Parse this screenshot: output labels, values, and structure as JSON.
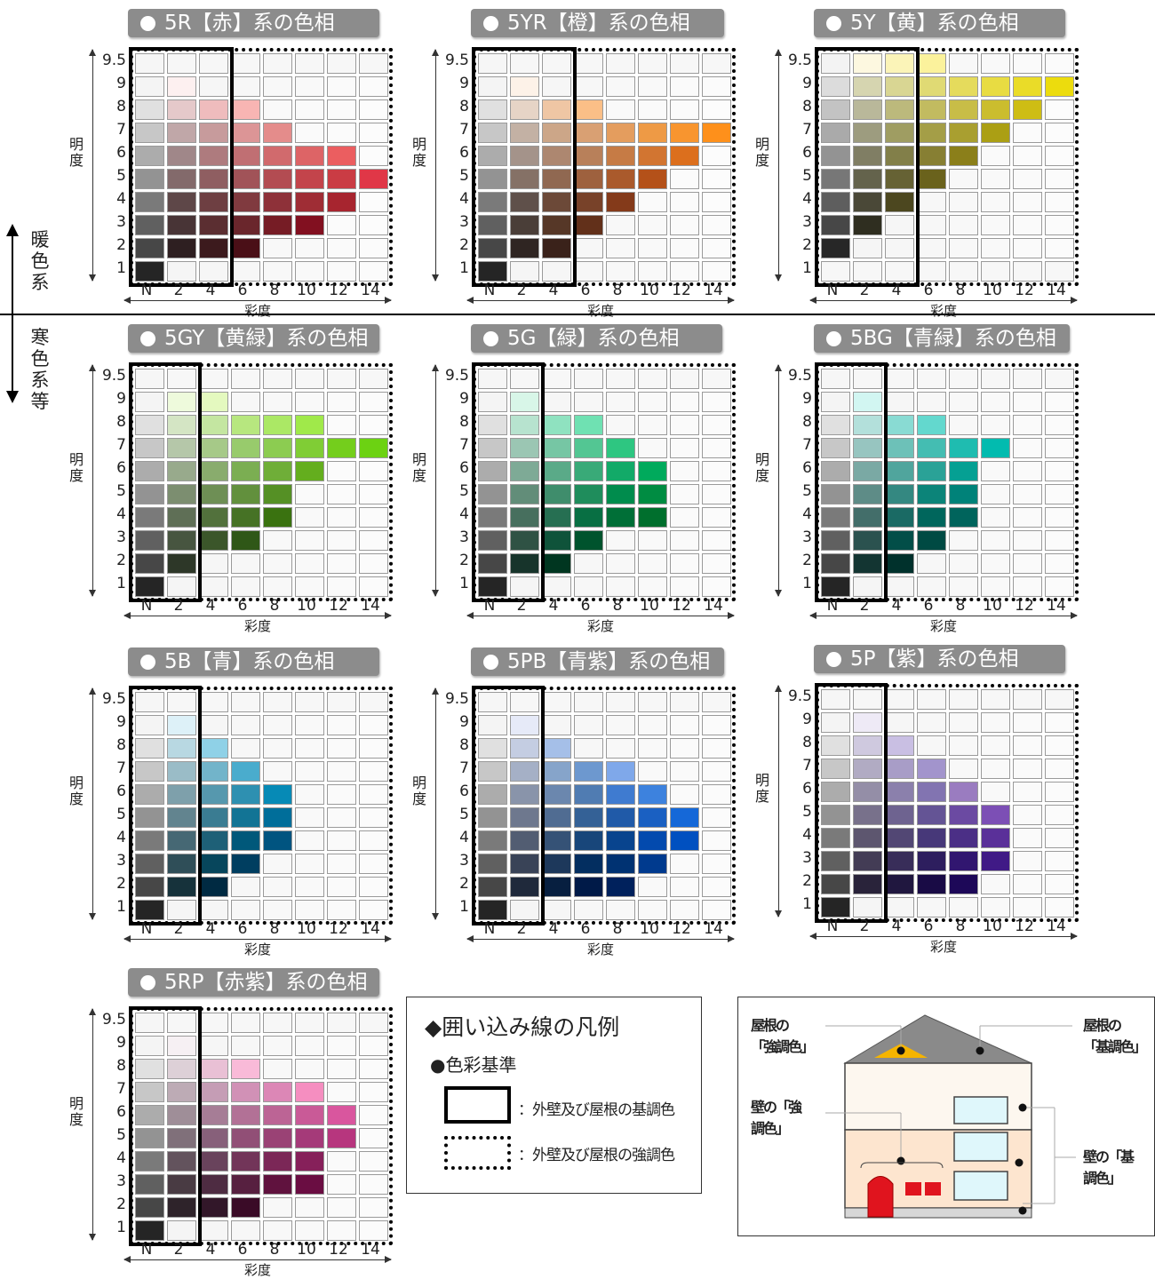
{
  "charts": [
    {
      "title": "5R【赤】系の色相",
      "cell_colors": {
        "2": [
          "#f4f4f4",
          "#fdf0f0",
          "#f6f6f6",
          "#f7f7f7",
          "#f8f8f8",
          "#f9f9f9",
          "#fafafa",
          "#fbfbfb"
        ],
        "3": [
          "#e0e0e0",
          "#e5c9ca",
          "#efbcbd",
          "#f8b5b3",
          "#f9f9f9",
          "#fafafa",
          "#fbfbfb",
          "#fcfcfc"
        ],
        "4": [
          "#c7c7c7",
          "#c0a7a8",
          "#c79b9c",
          "#dc9596",
          "#e48c8b",
          "#fafafa",
          "#fbfbfb",
          "#fcfcfc"
        ],
        "5": [
          "#acacac",
          "#a08789",
          "#ae7b7e",
          "#c06f73",
          "#d16a6d",
          "#dd6466",
          "#eb5e60",
          "#fcfcfc"
        ],
        "6": [
          "#939393",
          "#836a6b",
          "#8f5e61",
          "#a15358",
          "#b34c52",
          "#c3444b",
          "#ca3c44",
          "#e03747"
        ],
        "7": [
          "#7a7a7a",
          "#5e4748",
          "#6e3f42",
          "#803a3f",
          "#8e3139",
          "#9f2d35",
          "#a7252f",
          "#fcfcfc"
        ],
        "8": [
          "#606060",
          "#483436",
          "#5b2e31",
          "#6a262c",
          "#761c25",
          "#821020",
          "#fbfbfb",
          "#fcfcfc"
        ],
        "9": [
          "#474747",
          "#2e1f21",
          "#3c1a1d",
          "#4a0f17",
          "#f8f8f8",
          "#f9f9f9",
          "#fafafa",
          "#fbfbfb"
        ],
        "10": [
          "#252525",
          "#f5f5f5",
          "#f6f6f6",
          "#f7f7f7",
          "#f8f8f8",
          "#f9f9f9",
          "#fafafa",
          "#fbfbfb"
        ]
      }
    },
    {
      "title": "5YR【橙】系の色相",
      "cell_colors": {
        "2": [
          "#f4f4f4",
          "#fdf2e8",
          "#f6f6f6",
          "#f7f7f7",
          "#f8f8f8",
          "#f9f9f9",
          "#fafafa",
          "#fbfbfb"
        ],
        "3": [
          "#e0e0e0",
          "#e6d4c6",
          "#efc6a4",
          "#fbbf87",
          "#f9f9f9",
          "#fafafa",
          "#fbfbfb",
          "#fcfcfc"
        ],
        "4": [
          "#c7c7c7",
          "#c3b1a4",
          "#cca688",
          "#d9a073",
          "#e49d5e",
          "#ee9a45",
          "#f8952f",
          "#fe901b"
        ],
        "5": [
          "#acacac",
          "#a4938a",
          "#ad8770",
          "#b8805a",
          "#c67b45",
          "#d27531",
          "#dc6f1d",
          "#fcfcfc"
        ],
        "6": [
          "#939393",
          "#857166",
          "#906851",
          "#9e613e",
          "#aa5a2c",
          "#b45119",
          "#fbfbfb",
          "#fcfcfc"
        ],
        "7": [
          "#7a7a7a",
          "#5f504a",
          "#6c4938",
          "#784229",
          "#843a1a",
          "#fafafa",
          "#fbfbfb",
          "#fcfcfc"
        ],
        "8": [
          "#606060",
          "#4a3e38",
          "#563727",
          "#62301a",
          "#f8f8f8",
          "#f9f9f9",
          "#fafafa",
          "#fbfbfb"
        ],
        "9": [
          "#474747",
          "#2f2522",
          "#3a221a",
          "#f7f7f7",
          "#f8f8f8",
          "#f9f9f9",
          "#fafafa",
          "#fbfbfb"
        ],
        "10": [
          "#252525",
          "#f5f5f5",
          "#f6f6f6",
          "#f7f7f7",
          "#f8f8f8",
          "#f9f9f9",
          "#fafafa",
          "#fbfbfb"
        ]
      }
    },
    {
      "title": "5Y【黄】系の色相",
      "cell_colors": {
        "1": [
          "#f3f3f3",
          "#fdf8e0",
          "#fbf4b8",
          "#fbf29c",
          "#f8f8f8",
          "#f9f9f9",
          "#fafafa",
          "#fbfbfb"
        ],
        "2": [
          "#dcdcdc",
          "#d6d5b0",
          "#d9d693",
          "#e0da74",
          "#e5db5c",
          "#e8dc42",
          "#eadc28",
          "#ecdc0d"
        ],
        "3": [
          "#c3c3c3",
          "#b9b89a",
          "#bcb97c",
          "#c2bb60",
          "#c8bd47",
          "#cbbd2e",
          "#cebd14",
          "#fcfcfc"
        ],
        "4": [
          "#aaaaaa",
          "#9d9c7f",
          "#9f9d62",
          "#a49e47",
          "#a99f30",
          "#ab9f14",
          "#fbfbfb",
          "#fcfcfc"
        ],
        "5": [
          "#939393",
          "#807e64",
          "#827f49",
          "#877f33",
          "#8b7f1a",
          "#fafafa",
          "#fbfbfb",
          "#fcfcfc"
        ],
        "6": [
          "#777777",
          "#64634c",
          "#666234",
          "#6a621c",
          "#f8f8f8",
          "#f9f9f9",
          "#fafafa",
          "#fbfbfb"
        ],
        "7": [
          "#5e5e5e",
          "#4a4837",
          "#4c471f",
          "#f7f7f7",
          "#f8f8f8",
          "#f9f9f9",
          "#fafafa",
          "#fbfbfb"
        ],
        "8": [
          "#474747",
          "#2f2e20",
          "#f6f6f6",
          "#f7f7f7",
          "#f8f8f8",
          "#f9f9f9",
          "#fafafa",
          "#fbfbfb"
        ],
        "9": [
          "#272727",
          "#f5f5f5",
          "#f6f6f6",
          "#f7f7f7",
          "#f8f8f8",
          "#f9f9f9",
          "#fafafa",
          "#fbfbfb"
        ]
      }
    },
    {
      "title": "5GY【黄緑】系の色相",
      "cell_colors": {
        "2": [
          "#f4f4f4",
          "#eefadc",
          "#e4f9bf",
          "#f7f7f7",
          "#f8f8f8",
          "#f9f9f9",
          "#fafafa",
          "#fbfbfb"
        ],
        "3": [
          "#e0e0e0",
          "#d4e5c4",
          "#c4e6a1",
          "#b7e77f",
          "#abe865",
          "#a0e94a",
          "#fbfbfb",
          "#fcfcfc"
        ],
        "4": [
          "#c7c7c7",
          "#b5c7a9",
          "#a6c988",
          "#98cb6c",
          "#8ccc51",
          "#80cd35",
          "#74ce1c",
          "#6cd212"
        ],
        "5": [
          "#acacac",
          "#98aa8c",
          "#89ac6d",
          "#7bae52",
          "#6fae38",
          "#64ae1e",
          "#fbfbfb",
          "#fcfcfc"
        ],
        "6": [
          "#939393",
          "#7c8e70",
          "#6e8f55",
          "#62903d",
          "#559025",
          "#fafafa",
          "#fbfbfb",
          "#fcfcfc"
        ],
        "7": [
          "#7a7a7a",
          "#5f6f56",
          "#52713c",
          "#467225",
          "#3a7210",
          "#f9f9f9",
          "#fafafa",
          "#fbfbfb"
        ],
        "8": [
          "#606060",
          "#475540",
          "#3b562a",
          "#2f5717",
          "#f8f8f8",
          "#f9f9f9",
          "#fafafa",
          "#fbfbfb"
        ],
        "9": [
          "#474747",
          "#2d3728",
          "#f6f6f6",
          "#f7f7f7",
          "#f8f8f8",
          "#f9f9f9",
          "#fafafa",
          "#fbfbfb"
        ],
        "10": [
          "#252525",
          "#f5f5f5",
          "#f6f6f6",
          "#f7f7f7",
          "#f8f8f8",
          "#f9f9f9",
          "#fafafa",
          "#fbfbfb"
        ]
      }
    },
    {
      "title": "5G【緑】系の色相",
      "cell_colors": {
        "2": [
          "#f4f4f4",
          "#d8f6e8",
          "#f6f6f6",
          "#f7f7f7",
          "#f8f8f8",
          "#f9f9f9",
          "#fafafa",
          "#fbfbfb"
        ],
        "3": [
          "#e0e0e0",
          "#b7e3cf",
          "#8fe2c0",
          "#6fe1b2",
          "#f8f8f8",
          "#f9f9f9",
          "#fafafa",
          "#fbfbfb"
        ],
        "4": [
          "#c7c7c7",
          "#9bc6b3",
          "#76c6a4",
          "#53c693",
          "#2ec681",
          "#f9f9f9",
          "#fafafa",
          "#fbfbfb"
        ],
        "5": [
          "#acacac",
          "#7eaa96",
          "#5aaa88",
          "#39aa78",
          "#12aa68",
          "#00aa5c",
          "#fafafa",
          "#fbfbfb"
        ],
        "6": [
          "#939393",
          "#628d79",
          "#3f8d6c",
          "#1f8d5c",
          "#008c4d",
          "#008c42",
          "#fafafa",
          "#fbfbfb"
        ],
        "7": [
          "#7a7a7a",
          "#476f5e",
          "#266f52",
          "#086f43",
          "#006f37",
          "#006f2d",
          "#fafafa",
          "#fbfbfb"
        ],
        "8": [
          "#606060",
          "#2f5244",
          "#0f533a",
          "#00532d",
          "#f8f8f8",
          "#f9f9f9",
          "#fafafa",
          "#fbfbfb"
        ],
        "9": [
          "#474747",
          "#17342b",
          "#003620",
          "#f7f7f7",
          "#f8f8f8",
          "#f9f9f9",
          "#fafafa",
          "#fbfbfb"
        ],
        "10": [
          "#252525",
          "#f5f5f5",
          "#f6f6f6",
          "#f7f7f7",
          "#f8f8f8",
          "#f9f9f9",
          "#fafafa",
          "#fbfbfb"
        ]
      }
    },
    {
      "title": "5BG【青緑】系の色相",
      "cell_colors": {
        "2": [
          "#f4f4f4",
          "#d2f6f2",
          "#f6f6f6",
          "#f7f7f7",
          "#f8f8f8",
          "#f9f9f9",
          "#fafafa",
          "#fbfbfb"
        ],
        "3": [
          "#e0e0e0",
          "#b3e0db",
          "#89dbd3",
          "#63d8ce",
          "#f8f8f8",
          "#f9f9f9",
          "#fafafa",
          "#fbfbfb"
        ],
        "4": [
          "#c7c7c7",
          "#97c5c0",
          "#6dc1b8",
          "#44bdb2",
          "#1fbcb0",
          "#02bbaf",
          "#fafafa",
          "#fbfbfb"
        ],
        "5": [
          "#acacac",
          "#7aa9a4",
          "#50a59d",
          "#2aa297",
          "#05a093",
          "#f9f9f9",
          "#fafafa",
          "#fbfbfb"
        ],
        "6": [
          "#939393",
          "#5e8c87",
          "#348881",
          "#0c8479",
          "#008279",
          "#f9f9f9",
          "#fafafa",
          "#fbfbfb"
        ],
        "7": [
          "#7a7a7a",
          "#436e6a",
          "#1a6a64",
          "#00665c",
          "#00645c",
          "#f9f9f9",
          "#fafafa",
          "#fbfbfb"
        ],
        "8": [
          "#606060",
          "#2b524f",
          "#024e48",
          "#004a43",
          "#f8f8f8",
          "#f9f9f9",
          "#fafafa",
          "#fbfbfb"
        ],
        "9": [
          "#474747",
          "#133532",
          "#00312c",
          "#f7f7f7",
          "#f8f8f8",
          "#f9f9f9",
          "#fafafa",
          "#fbfbfb"
        ],
        "10": [
          "#252525",
          "#f5f5f5",
          "#f6f6f6",
          "#f7f7f7",
          "#f8f8f8",
          "#f9f9f9",
          "#fafafa",
          "#fbfbfb"
        ]
      }
    },
    {
      "title": "5B【青】系の色相",
      "cell_colors": {
        "2": [
          "#f4f4f4",
          "#ddf1f8",
          "#f6f6f6",
          "#f7f7f7",
          "#f8f8f8",
          "#f9f9f9",
          "#fafafa",
          "#fbfbfb"
        ],
        "3": [
          "#e0e0e0",
          "#b8d8e2",
          "#8fd1e7",
          "#f7f7f7",
          "#f8f8f8",
          "#f9f9f9",
          "#fafafa",
          "#fbfbfb"
        ],
        "4": [
          "#c7c7c7",
          "#9abcc7",
          "#72b4ca",
          "#4aaccd",
          "#f8f8f8",
          "#f9f9f9",
          "#fafafa",
          "#fbfbfb"
        ],
        "5": [
          "#acacac",
          "#7ea0ab",
          "#5698ae",
          "#2e90b1",
          "#068ab6",
          "#f9f9f9",
          "#fafafa",
          "#fbfbfb"
        ],
        "6": [
          "#939393",
          "#62848f",
          "#3a7c92",
          "#127495",
          "#006e9a",
          "#f9f9f9",
          "#fafafa",
          "#fbfbfb"
        ],
        "7": [
          "#7a7a7a",
          "#466874",
          "#1e6077",
          "#00587a",
          "#005480",
          "#f9f9f9",
          "#fafafa",
          "#fbfbfb"
        ],
        "8": [
          "#606060",
          "#2f4e58",
          "#07465c",
          "#003e60",
          "#f8f8f8",
          "#f9f9f9",
          "#fafafa",
          "#fbfbfb"
        ],
        "9": [
          "#474747",
          "#16323b",
          "#002a42",
          "#f7f7f7",
          "#f8f8f8",
          "#f9f9f9",
          "#fafafa",
          "#fbfbfb"
        ],
        "10": [
          "#252525",
          "#f5f5f5",
          "#f6f6f6",
          "#f7f7f7",
          "#f8f8f8",
          "#f9f9f9",
          "#fafafa",
          "#fbfbfb"
        ]
      }
    },
    {
      "title": "5PB【青紫】系の色相",
      "cell_colors": {
        "2": [
          "#f4f4f4",
          "#e6eaf8",
          "#f6f6f6",
          "#f7f7f7",
          "#f8f8f8",
          "#f9f9f9",
          "#fafafa",
          "#fbfbfb"
        ],
        "3": [
          "#e0e0e0",
          "#c4cde2",
          "#a5bfe8",
          "#f7f7f7",
          "#f8f8f8",
          "#f9f9f9",
          "#fafafa",
          "#fbfbfb"
        ],
        "4": [
          "#c7c7c7",
          "#a5b0c6",
          "#86a4ca",
          "#6d98cf",
          "#7fa8ea",
          "#f9f9f9",
          "#fafafa",
          "#fbfbfb"
        ],
        "5": [
          "#acacac",
          "#8994aa",
          "#6b87ae",
          "#507cb2",
          "#3f7bd0",
          "#3d82de",
          "#fafafa",
          "#fbfbfb"
        ],
        "6": [
          "#939393",
          "#6e788e",
          "#506c92",
          "#346196",
          "#205aa8",
          "#1a60c2",
          "#1568d8",
          "#fbfbfb"
        ],
        "7": [
          "#7a7a7a",
          "#525d72",
          "#355276",
          "#18467a",
          "#08448e",
          "#034aae",
          "#0050c0",
          "#fbfbfb"
        ],
        "8": [
          "#606060",
          "#394357",
          "#1d385b",
          "#032e60",
          "#003272",
          "#003a8e",
          "#fafafa",
          "#fbfbfb"
        ],
        "9": [
          "#474747",
          "#1f293b",
          "#071f40",
          "#001a48",
          "#00215c",
          "#f9f9f9",
          "#fafafa",
          "#fbfbfb"
        ],
        "10": [
          "#252525",
          "#f5f5f5",
          "#f6f6f6",
          "#f7f7f7",
          "#f8f8f8",
          "#f9f9f9",
          "#fafafa",
          "#fbfbfb"
        ]
      }
    },
    {
      "title": "5P【紫】系の色相",
      "cell_colors": {
        "2": [
          "#f4f4f4",
          "#eeeaf6",
          "#f6f6f6",
          "#f7f7f7",
          "#f8f8f8",
          "#f9f9f9",
          "#fafafa",
          "#fbfbfb"
        ],
        "3": [
          "#e0e0e0",
          "#cfc9df",
          "#c9bfe3",
          "#f7f7f7",
          "#f8f8f8",
          "#f9f9f9",
          "#fafafa",
          "#fbfbfb"
        ],
        "4": [
          "#c7c7c7",
          "#b1abc3",
          "#a89dc7",
          "#a294cc",
          "#f8f8f8",
          "#f9f9f9",
          "#fafafa",
          "#fbfbfb"
        ],
        "5": [
          "#acacac",
          "#948ea7",
          "#8b80ac",
          "#8274b1",
          "#9a7cc0",
          "#f9f9f9",
          "#fafafa",
          "#fbfbfb"
        ],
        "6": [
          "#939393",
          "#78718b",
          "#6e6390",
          "#645495",
          "#6b4aa2",
          "#7c4fb5",
          "#fafafa",
          "#fbfbfb"
        ],
        "7": [
          "#7a7a7a",
          "#5d566f",
          "#524774",
          "#473879",
          "#4b2f86",
          "#5a3099",
          "#fafafa",
          "#fbfbfb"
        ],
        "8": [
          "#606060",
          "#433c55",
          "#382d59",
          "#2d1e5e",
          "#311670",
          "#401a86",
          "#fafafa",
          "#fbfbfb"
        ],
        "9": [
          "#474747",
          "#29233a",
          "#20173f",
          "#190b45",
          "#1d0858",
          "#f9f9f9",
          "#fafafa",
          "#fbfbfb"
        ],
        "10": [
          "#252525",
          "#f5f5f5",
          "#f6f6f6",
          "#f7f7f7",
          "#f8f8f8",
          "#f9f9f9",
          "#fafafa",
          "#fbfbfb"
        ]
      }
    },
    {
      "title": "5RP【赤紫】系の色相",
      "cell_colors": {
        "2": [
          "#f4f4f4",
          "#f6f0f3",
          "#f6f6f6",
          "#f7f7f7",
          "#f8f8f8",
          "#f9f9f9",
          "#fafafa",
          "#fbfbfb"
        ],
        "3": [
          "#e0e0e0",
          "#ddd0d7",
          "#e9c0d5",
          "#f9bad8",
          "#f8f8f8",
          "#f9f9f9",
          "#fafafa",
          "#fbfbfb"
        ],
        "4": [
          "#c7c7c7",
          "#bdabb5",
          "#c59db5",
          "#d191b6",
          "#dc87b6",
          "#f58ec0",
          "#fafafa",
          "#fbfbfb"
        ],
        "5": [
          "#acacac",
          "#9f8e98",
          "#a67d96",
          "#b27196",
          "#bc6495",
          "#c95a97",
          "#d9569e",
          "#fbfbfb"
        ],
        "6": [
          "#939393",
          "#80707a",
          "#87607a",
          "#914f76",
          "#9a4275",
          "#a53a79",
          "#b7367e",
          "#fbfbfb"
        ],
        "7": [
          "#7a7a7a",
          "#63535d",
          "#69435c",
          "#723559",
          "#7b2757",
          "#86205a",
          "#fafafa",
          "#fbfbfb"
        ],
        "8": [
          "#606060",
          "#493b43",
          "#4e2c42",
          "#572040",
          "#60123e",
          "#6a0d42",
          "#fafafa",
          "#fbfbfb"
        ],
        "9": [
          "#474747",
          "#2e232a",
          "#321729",
          "#3a0b27",
          "#f8f8f8",
          "#f9f9f9",
          "#fafafa",
          "#fbfbfb"
        ],
        "10": [
          "#252525",
          "#f5f5f5",
          "#f6f6f6",
          "#f7f7f7",
          "#f8f8f8",
          "#f9f9f9",
          "#fafafa",
          "#fbfbfb"
        ]
      }
    }
  ],
  "axis": {
    "y_title": "明度",
    "x_title": "彩度",
    "y_ticks": [
      "9.5",
      "9",
      "8",
      "7",
      "6",
      "5",
      "4",
      "3",
      "2",
      "1"
    ],
    "x_ticks": [
      "N",
      "2",
      "4",
      "6",
      "8",
      "10",
      "12",
      "14"
    ]
  },
  "side": {
    "warm": "暖色系",
    "cool": "寒色系等"
  },
  "legend": {
    "title": "◆囲い込み線の凡例",
    "subtitle": "●色彩基準",
    "solid_label": "：外壁及び屋根の基調色",
    "dotted_label": "：外壁及び屋根の強調色"
  },
  "house": {
    "roof_accent": "屋根の「強調色」",
    "roof_base": "屋根の「基調色」",
    "wall_accent": "壁の「強調色」",
    "wall_base": "壁の「基調色」",
    "colors": {
      "roof": "#8a8a8a",
      "roof_accent": "#f5b400",
      "wall_upper": "#fdf7ef",
      "wall_lower": "#fde5cf",
      "door": "#e0141e",
      "window": "#dff7fb"
    }
  }
}
